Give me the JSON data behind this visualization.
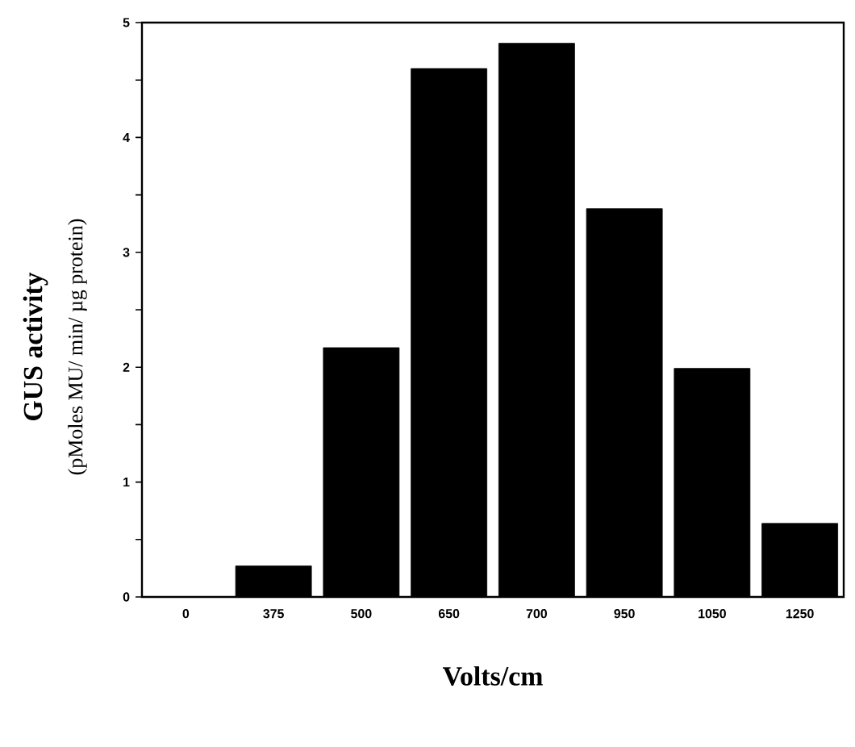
{
  "chart_data": {
    "type": "bar",
    "xlabel": "Volts/cm",
    "ylabel": "GUS  activity",
    "annotations": [
      "(pMoles MU/ min/ µg protein)"
    ],
    "categories": [
      "0",
      "375",
      "500",
      "650",
      "700",
      "950",
      "1050",
      "1250"
    ],
    "values": [
      0,
      0.27,
      2.17,
      4.6,
      4.82,
      3.38,
      1.99,
      0.64
    ],
    "color": "#000000",
    "ylim": [
      0,
      5
    ],
    "yticks": [
      0,
      {
        "value": 0.5,
        "label": null
      },
      1,
      {
        "value": 1.5,
        "label": null
      },
      2,
      {
        "value": 2.5,
        "label": null
      },
      3,
      {
        "value": 3.5,
        "label": null
      },
      4,
      {
        "value": 4.5,
        "label": null
      },
      5
    ],
    "grid": false
  }
}
